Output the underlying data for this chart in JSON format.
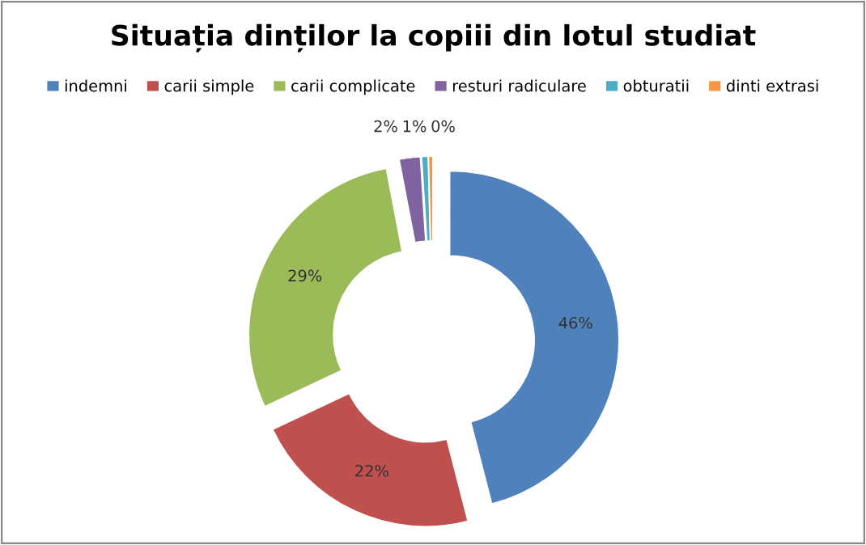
{
  "chart_data": {
    "type": "donut",
    "title": "Situația dinților la copiii din lotul studiat",
    "categories": [
      "indemni",
      "carii simple",
      "carii complicate",
      "resturi radiculare",
      "obturatii",
      "dinti extrasi"
    ],
    "values": [
      46,
      22,
      29,
      2,
      0.6,
      0.4
    ],
    "value_labels": [
      "46%",
      "22%",
      "29%",
      "2%",
      "1%",
      "0%"
    ],
    "colors": [
      "#4f81bd",
      "#c0504d",
      "#9bbb59",
      "#8064a2",
      "#4bacc6",
      "#f79646"
    ],
    "legend": "top"
  }
}
